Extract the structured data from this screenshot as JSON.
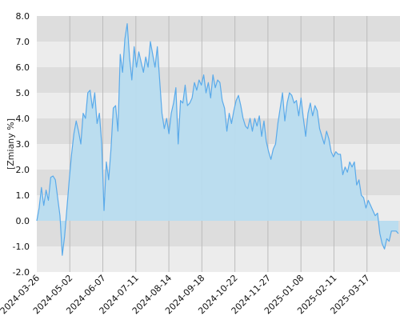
{
  "chart_data": {
    "type": "area",
    "ylabel": "[Zmiany %]",
    "ylim": [
      -2.0,
      8.0
    ],
    "y_ticks": [
      "-2.0",
      "-1.0",
      "0.0",
      "1.0",
      "2.0",
      "3.0",
      "4.0",
      "5.0",
      "6.0",
      "7.0",
      "8.0"
    ],
    "x_ticks": [
      "2024-03-26",
      "2024-05-02",
      "2024-06-07",
      "2024-07-11",
      "2024-08-14",
      "2024-09-18",
      "2024-10-22",
      "2024-11-27",
      "2025-01-08",
      "2025-02-11",
      "2025-03-17"
    ],
    "grid": "horizontal bands + vertical lines",
    "colors": {
      "line": "#5aaaea",
      "fill": "#b8dcef",
      "band_dark": "#dddddd",
      "band_light": "#ececec",
      "grid_line": "#bbbbbb"
    },
    "series": [
      {
        "values": [
          0.0,
          0.5,
          1.3,
          0.6,
          1.2,
          0.8,
          1.7,
          1.75,
          1.6,
          0.9,
          0.2,
          -1.35,
          -0.6,
          0.5,
          1.6,
          2.6,
          3.4,
          3.9,
          3.5,
          3.0,
          4.2,
          4.0,
          5.0,
          5.1,
          4.4,
          5.0,
          3.8,
          4.2,
          3.0,
          0.4,
          2.3,
          1.6,
          2.8,
          4.4,
          4.5,
          3.5,
          6.5,
          5.8,
          7.1,
          7.7,
          6.4,
          5.5,
          6.8,
          6.0,
          6.6,
          6.2,
          5.8,
          6.4,
          6.0,
          7.0,
          6.5,
          6.0,
          6.8,
          5.5,
          4.2,
          3.6,
          4.0,
          3.4,
          4.2,
          4.6,
          5.2,
          3.0,
          4.7,
          4.6,
          5.3,
          4.5,
          4.6,
          4.8,
          5.4,
          5.1,
          5.5,
          5.3,
          5.7,
          5.0,
          5.4,
          4.8,
          5.7,
          5.2,
          5.5,
          5.4,
          4.7,
          4.4,
          3.5,
          4.2,
          3.8,
          4.3,
          4.7,
          4.9,
          4.5,
          4.0,
          3.7,
          3.6,
          4.0,
          3.5,
          4.0,
          3.7,
          4.1,
          3.3,
          3.9,
          3.1,
          2.7,
          2.4,
          2.8,
          3.0,
          3.8,
          4.4,
          5.0,
          3.9,
          4.6,
          5.0,
          4.9,
          4.6,
          4.7,
          4.1,
          4.8,
          4.0,
          3.3,
          4.2,
          4.6,
          4.1,
          4.5,
          4.3,
          3.6,
          3.3,
          3.0,
          3.5,
          3.2,
          2.7,
          2.5,
          2.7,
          2.6,
          2.6,
          1.8,
          2.1,
          1.9,
          2.3,
          2.1,
          2.3,
          1.4,
          1.6,
          1.0,
          0.9,
          0.5,
          0.8,
          0.6,
          0.4,
          0.2,
          0.3,
          -0.5,
          -0.9,
          -1.1,
          -0.7,
          -0.8,
          -0.4,
          -0.4,
          -0.4,
          -0.5
        ]
      }
    ]
  }
}
